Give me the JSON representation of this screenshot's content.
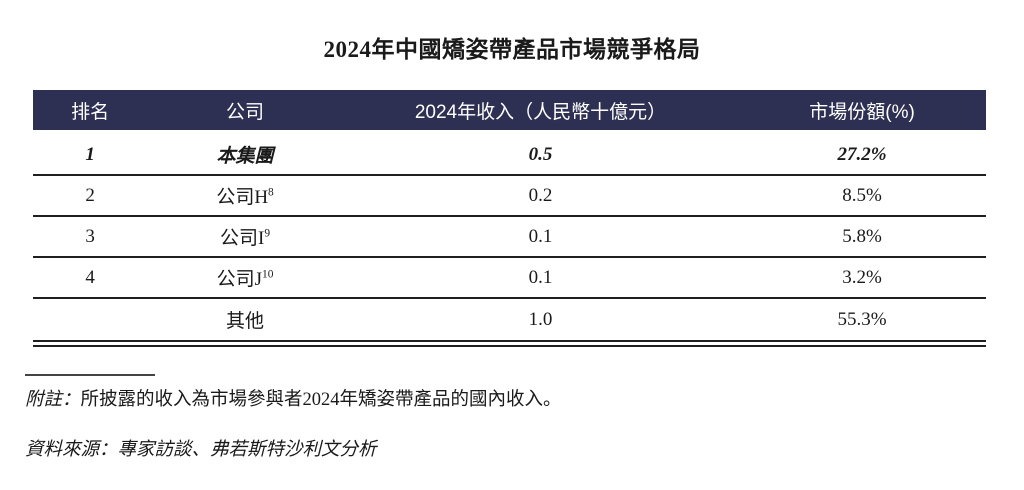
{
  "title": "2024年中國矯姿帶產品市場競爭格局",
  "table": {
    "headers": [
      "排名",
      "公司",
      "2024年收入（人民幣十億元）",
      "市場份額(%)"
    ],
    "rows": [
      {
        "rank": "1",
        "company": "本集團",
        "sup": "",
        "revenue": "0.5",
        "share": "27.2%",
        "emphasis": true
      },
      {
        "rank": "2",
        "company": "公司H",
        "sup": "8",
        "revenue": "0.2",
        "share": "8.5%",
        "emphasis": false
      },
      {
        "rank": "3",
        "company": "公司I",
        "sup": "9",
        "revenue": "0.1",
        "share": "5.8%",
        "emphasis": false
      },
      {
        "rank": "4",
        "company": "公司J",
        "sup": "10",
        "revenue": "0.1",
        "share": "3.2%",
        "emphasis": false
      },
      {
        "rank": "",
        "company": "其他",
        "sup": "",
        "revenue": "1.0",
        "share": "55.3%",
        "emphasis": false
      }
    ]
  },
  "notes": {
    "note_label": "附註：",
    "note_text": "所披露的收入為市場參與者2024年矯姿帶產品的國內收入。",
    "source_text": "資料來源：專家訪談、弗若斯特沙利文分析"
  },
  "colors": {
    "header_bg": "#2e3053",
    "header_text": "#ffffff",
    "rule": "#1f1f1f"
  }
}
